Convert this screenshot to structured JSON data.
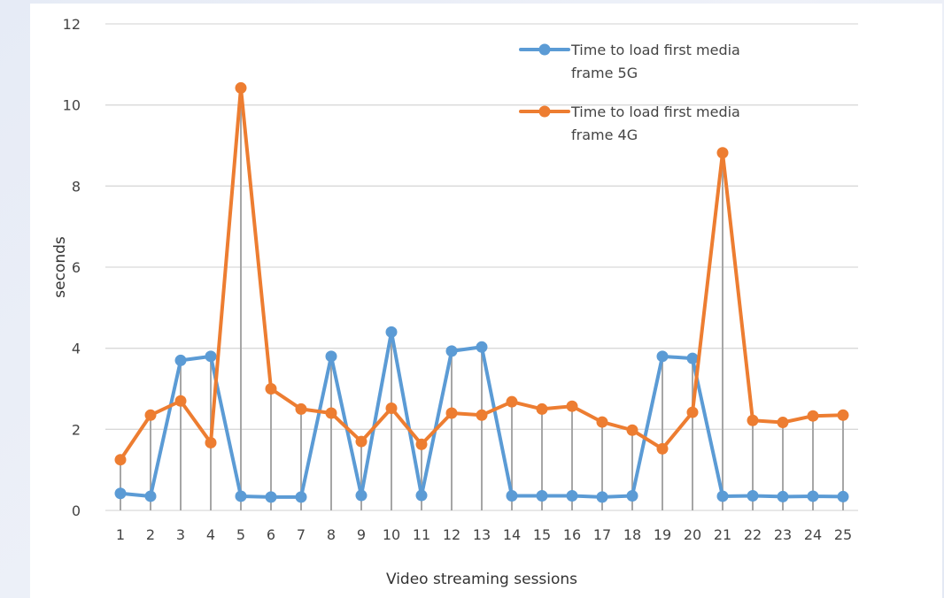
{
  "chart_data": {
    "type": "line",
    "title": "",
    "xlabel": "Video streaming sessions",
    "ylabel": "seconds",
    "ylim": [
      0,
      12
    ],
    "yticks": [
      0,
      2,
      4,
      6,
      8,
      10,
      12
    ],
    "grid": true,
    "legend_position": "top-right",
    "categories": [
      "1",
      "2",
      "3",
      "4",
      "5",
      "6",
      "7",
      "8",
      "9",
      "10",
      "11",
      "12",
      "13",
      "14",
      "15",
      "16",
      "17",
      "18",
      "19",
      "20",
      "21",
      "22",
      "23",
      "24",
      "25"
    ],
    "series": [
      {
        "name": "Time to load first media frame 5G",
        "legend_lines": [
          "Time to load first media",
          "frame 5G"
        ],
        "color": "#5b9bd5",
        "values": [
          0.42,
          0.35,
          3.7,
          3.8,
          0.35,
          0.33,
          0.33,
          3.8,
          0.37,
          4.4,
          0.37,
          3.93,
          4.03,
          0.36,
          0.36,
          0.36,
          0.33,
          0.36,
          3.8,
          3.75,
          0.35,
          0.36,
          0.34,
          0.35,
          0.34
        ]
      },
      {
        "name": "Time to load first media frame 4G",
        "legend_lines": [
          "Time to load first media",
          "frame 4G"
        ],
        "color": "#ed7d31",
        "values": [
          1.25,
          2.35,
          2.7,
          1.67,
          10.42,
          3.0,
          2.5,
          2.4,
          1.7,
          2.52,
          1.63,
          2.4,
          2.35,
          2.68,
          2.5,
          2.57,
          2.18,
          1.98,
          1.52,
          2.42,
          8.82,
          2.22,
          2.17,
          2.33,
          2.35
        ]
      }
    ],
    "drop_lines": true,
    "drop_line_color": "#a6a6a6",
    "gridline_color": "#d9d9d9"
  }
}
